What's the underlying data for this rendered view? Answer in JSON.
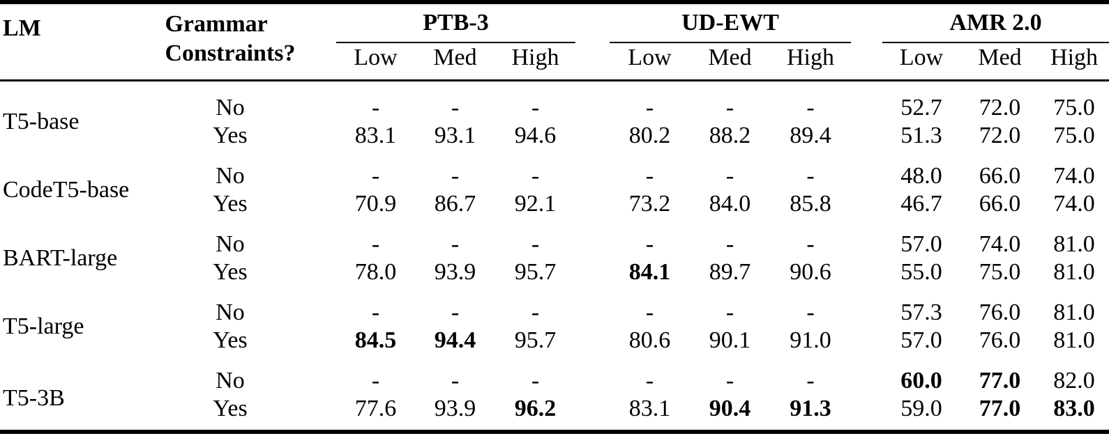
{
  "table": {
    "col_headers": {
      "lm": "LM",
      "grammar_line1": "Grammar",
      "grammar_line2": "Constraints?",
      "groups": [
        {
          "name": "PTB-3",
          "cols": [
            "Low",
            "Med",
            "High"
          ]
        },
        {
          "name": "UD-EWT",
          "cols": [
            "Low",
            "Med",
            "High"
          ]
        },
        {
          "name": "AMR 2.0",
          "cols": [
            "Low",
            "Med",
            "High"
          ]
        }
      ]
    },
    "rows": [
      {
        "model": "T5-base",
        "sub": [
          {
            "label": "No",
            "values": [
              "-",
              "-",
              "-",
              "-",
              "-",
              "-",
              "52.7",
              "72.0",
              "75.0"
            ],
            "bold": []
          },
          {
            "label": "Yes",
            "values": [
              "83.1",
              "93.1",
              "94.6",
              "80.2",
              "88.2",
              "89.4",
              "51.3",
              "72.0",
              "75.0"
            ],
            "bold": []
          }
        ]
      },
      {
        "model": "CodeT5-base",
        "sub": [
          {
            "label": "No",
            "values": [
              "-",
              "-",
              "-",
              "-",
              "-",
              "-",
              "48.0",
              "66.0",
              "74.0"
            ],
            "bold": []
          },
          {
            "label": "Yes",
            "values": [
              "70.9",
              "86.7",
              "92.1",
              "73.2",
              "84.0",
              "85.8",
              "46.7",
              "66.0",
              "74.0"
            ],
            "bold": []
          }
        ]
      },
      {
        "model": "BART-large",
        "sub": [
          {
            "label": "No",
            "values": [
              "-",
              "-",
              "-",
              "-",
              "-",
              "-",
              "57.0",
              "74.0",
              "81.0"
            ],
            "bold": []
          },
          {
            "label": "Yes",
            "values": [
              "78.0",
              "93.9",
              "95.7",
              "84.1",
              "89.7",
              "90.6",
              "55.0",
              "75.0",
              "81.0"
            ],
            "bold": [
              3
            ]
          }
        ]
      },
      {
        "model": "T5-large",
        "sub": [
          {
            "label": "No",
            "values": [
              "-",
              "-",
              "-",
              "-",
              "-",
              "-",
              "57.3",
              "76.0",
              "81.0"
            ],
            "bold": []
          },
          {
            "label": "Yes",
            "values": [
              "84.5",
              "94.4",
              "95.7",
              "80.6",
              "90.1",
              "91.0",
              "57.0",
              "76.0",
              "81.0"
            ],
            "bold": [
              0,
              1
            ]
          }
        ]
      },
      {
        "model": "T5-3B",
        "sub": [
          {
            "label": "No",
            "values": [
              "-",
              "-",
              "-",
              "-",
              "-",
              "-",
              "60.0",
              "77.0",
              "82.0"
            ],
            "bold": [
              6,
              7
            ]
          },
          {
            "label": "Yes",
            "values": [
              "77.6",
              "93.9",
              "96.2",
              "83.1",
              "90.4",
              "91.3",
              "59.0",
              "77.0",
              "83.0"
            ],
            "bold": [
              2,
              4,
              5,
              7,
              8
            ]
          }
        ]
      }
    ]
  }
}
